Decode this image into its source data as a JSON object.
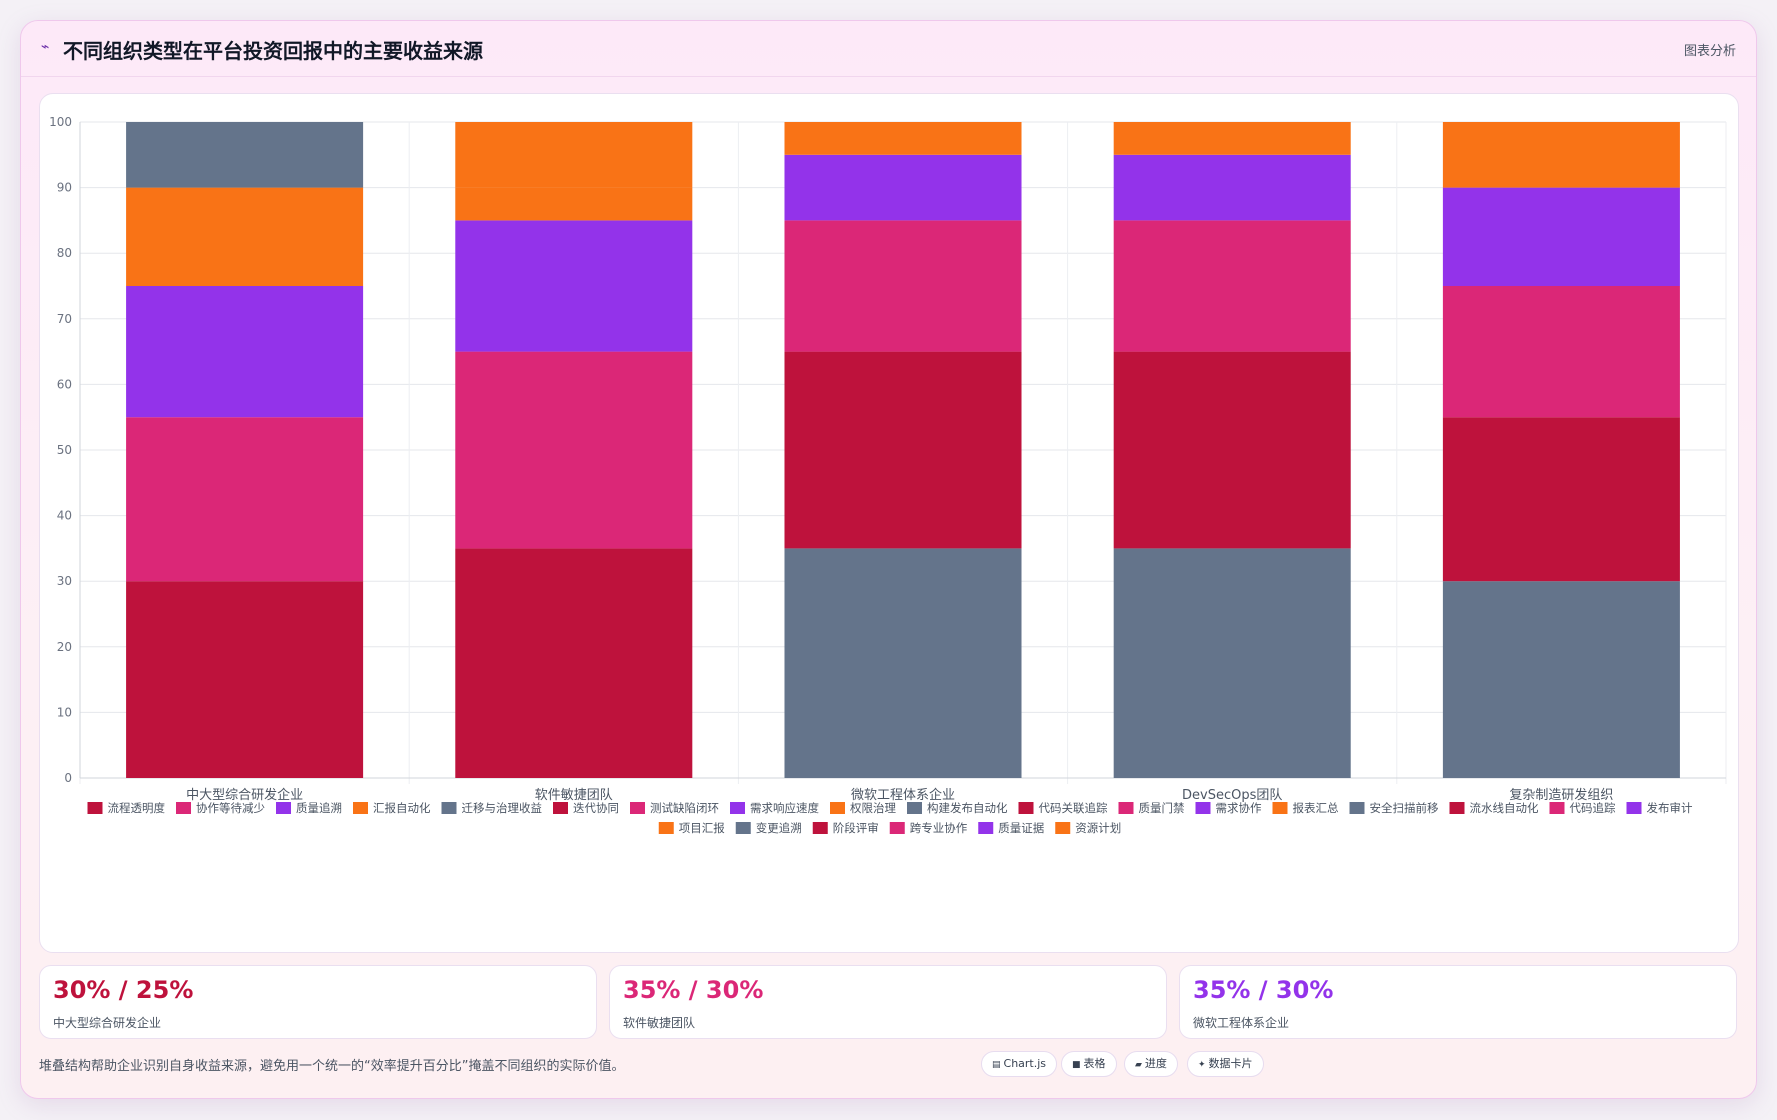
{
  "header": {
    "title": "不同组织类型在平台投资回报中的主要收益来源",
    "action": "图表分析"
  },
  "chart_data": {
    "type": "bar",
    "stacked": true,
    "title": "",
    "xlabel": "",
    "ylabel": "",
    "ylim": [
      0,
      100
    ],
    "yticks": [
      0,
      10,
      20,
      30,
      40,
      50,
      60,
      70,
      80,
      90,
      100
    ],
    "grid": true,
    "legend_position": "bottom",
    "categories": [
      "中大型综合研发企业",
      "软件敏捷团队",
      "微软工程体系企业",
      "DevSecOps团队",
      "复杂制造研发组织"
    ],
    "series": [
      {
        "name": "流程透明度",
        "color": "#be123c",
        "values": [
          30,
          null,
          null,
          null,
          null
        ]
      },
      {
        "name": "协作等待减少",
        "color": "#db2777",
        "values": [
          25,
          null,
          null,
          null,
          null
        ]
      },
      {
        "name": "质量追溯",
        "color": "#9333ea",
        "values": [
          20,
          null,
          null,
          null,
          null
        ]
      },
      {
        "name": "汇报自动化",
        "color": "#f97316",
        "values": [
          15,
          null,
          null,
          null,
          null
        ]
      },
      {
        "name": "迁移与治理收益",
        "color": "#64748b",
        "values": [
          10,
          null,
          null,
          null,
          null
        ]
      },
      {
        "name": "迭代协同",
        "color": "#be123c",
        "values": [
          null,
          35,
          null,
          null,
          null
        ]
      },
      {
        "name": "测试缺陷闭环",
        "color": "#db2777",
        "values": [
          null,
          30,
          null,
          null,
          null
        ]
      },
      {
        "name": "需求响应速度",
        "color": "#9333ea",
        "values": [
          null,
          20,
          null,
          null,
          null
        ]
      },
      {
        "name": "权限治理",
        "color": "#f97316",
        "values": [
          null,
          5,
          null,
          null,
          null
        ]
      },
      {
        "name": "构建发布自动化",
        "color": "#64748b",
        "values": [
          null,
          null,
          35,
          null,
          null
        ]
      },
      {
        "name": "代码关联追踪",
        "color": "#be123c",
        "values": [
          null,
          null,
          30,
          null,
          null
        ]
      },
      {
        "name": "质量门禁",
        "color": "#db2777",
        "values": [
          null,
          null,
          20,
          null,
          null
        ]
      },
      {
        "name": "需求协作",
        "color": "#9333ea",
        "values": [
          null,
          null,
          10,
          null,
          null
        ]
      },
      {
        "name": "报表汇总",
        "color": "#f97316",
        "values": [
          null,
          null,
          5,
          null,
          null
        ]
      },
      {
        "name": "安全扫描前移",
        "color": "#64748b",
        "values": [
          null,
          null,
          null,
          35,
          null
        ]
      },
      {
        "name": "流水线自动化",
        "color": "#be123c",
        "values": [
          null,
          null,
          null,
          30,
          null
        ]
      },
      {
        "name": "代码追踪",
        "color": "#db2777",
        "values": [
          null,
          null,
          null,
          20,
          null
        ]
      },
      {
        "name": "发布审计",
        "color": "#9333ea",
        "values": [
          null,
          null,
          null,
          10,
          null
        ]
      },
      {
        "name": "项目汇报",
        "color": "#f97316",
        "values": [
          null,
          10,
          null,
          5,
          null
        ]
      },
      {
        "name": "变更追溯",
        "color": "#64748b",
        "values": [
          null,
          null,
          null,
          null,
          30
        ]
      },
      {
        "name": "阶段评审",
        "color": "#be123c",
        "values": [
          null,
          null,
          null,
          null,
          25
        ]
      },
      {
        "name": "跨专业协作",
        "color": "#db2777",
        "values": [
          null,
          null,
          null,
          null,
          20
        ]
      },
      {
        "name": "质量证据",
        "color": "#9333ea",
        "values": [
          null,
          null,
          null,
          null,
          15
        ]
      },
      {
        "name": "资源计划",
        "color": "#f97316",
        "values": [
          null,
          null,
          null,
          null,
          10
        ]
      }
    ]
  },
  "stats": [
    {
      "value": "30% / 25%",
      "label": "中大型综合研发企业",
      "color": "#be123c"
    },
    {
      "value": "35% / 30%",
      "label": "软件敏捷团队",
      "color": "#db2777"
    },
    {
      "value": "35% / 30%",
      "label": "微软工程体系企业",
      "color": "#9333ea"
    }
  ],
  "footnote": "堆叠结构帮助企业识别自身收益来源，避免用一个统一的“效率提升百分比”掩盖不同组织的实际价值。",
  "chips": [
    {
      "icon": "▤",
      "icon_name": "chart-icon",
      "label": "Chart.js"
    },
    {
      "icon": "■",
      "icon_name": "table-icon",
      "label": "表格"
    },
    {
      "icon": "▰",
      "icon_name": "progress-icon",
      "label": "进度"
    },
    {
      "icon": "✦",
      "icon_name": "data-card-icon",
      "label": "数据卡片"
    }
  ]
}
